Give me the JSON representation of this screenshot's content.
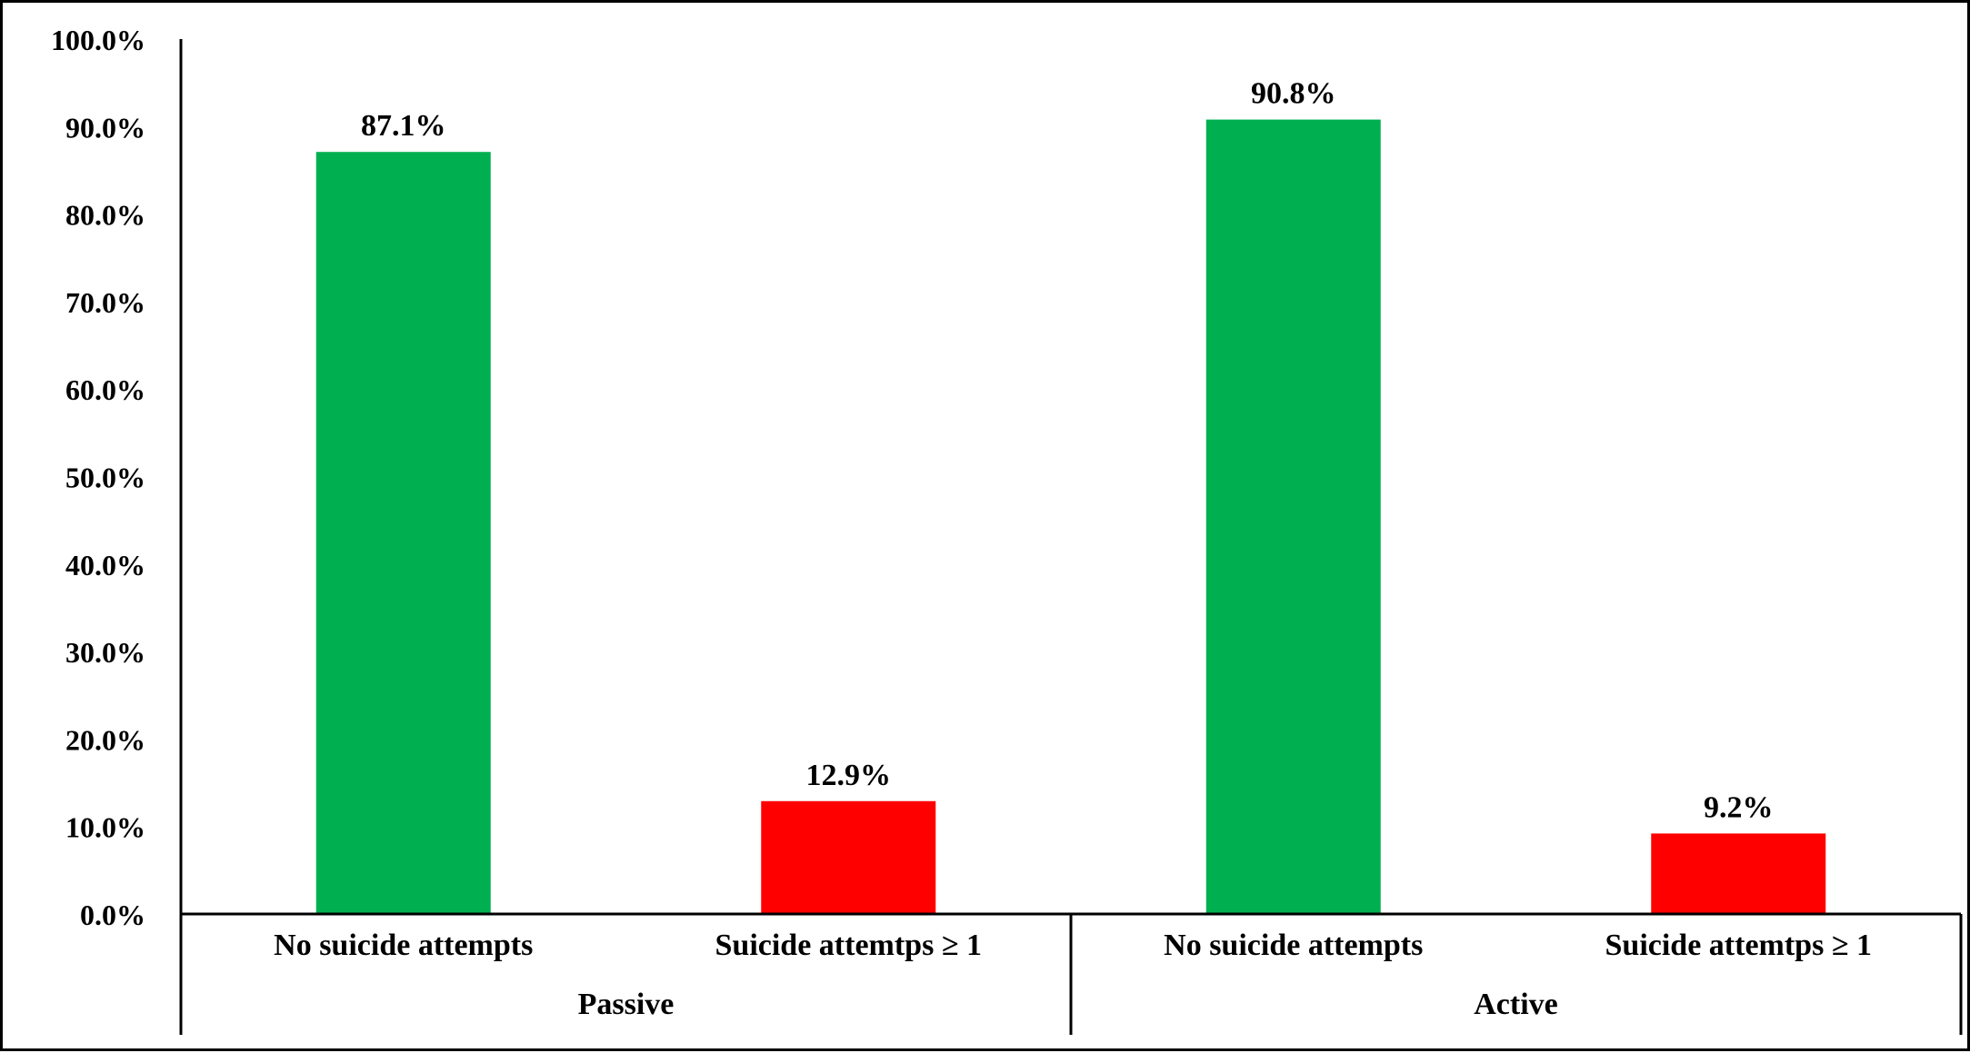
{
  "chart_data": {
    "type": "bar",
    "ylim": [
      0,
      100
    ],
    "y_ticks": [
      0,
      10,
      20,
      30,
      40,
      50,
      60,
      70,
      80,
      90,
      100
    ],
    "y_tick_labels": [
      "0.0%",
      "10.0%",
      "20.0%",
      "30.0%",
      "40.0%",
      "50.0%",
      "60.0%",
      "70.0%",
      "80.0%",
      "90.0%",
      "100.0%"
    ],
    "groups": [
      {
        "label": "Passive",
        "bars": [
          {
            "category": "No suicide attempts",
            "value": 87.1,
            "data_label": "87.1%",
            "color": "#00B050"
          },
          {
            "category": "Suicide attemtps ≥ 1",
            "value": 12.9,
            "data_label": "12.9%",
            "color": "#FF0000"
          }
        ]
      },
      {
        "label": "Active",
        "bars": [
          {
            "category": "No suicide attempts",
            "value": 90.8,
            "data_label": "90.8%",
            "color": "#00B050"
          },
          {
            "category": "Suicide attemtps ≥ 1",
            "value": 9.2,
            "data_label": "9.2%",
            "color": "#FF0000"
          }
        ]
      }
    ],
    "title": "",
    "xlabel": "",
    "ylabel": "",
    "grid": false,
    "legend": "none"
  }
}
